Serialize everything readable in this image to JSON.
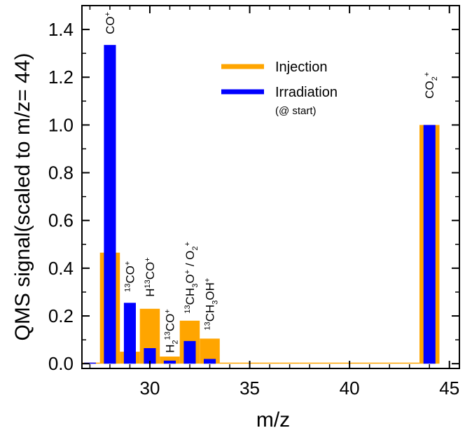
{
  "chart_data": {
    "type": "bar",
    "xlabel": "m/z",
    "ylabel": "QMS signal(scaled to m/z= 44)",
    "xlim": [
      26.6,
      45.5
    ],
    "ylim": [
      -0.02,
      1.5
    ],
    "xticks": [
      {
        "value": 30,
        "label": "30"
      },
      {
        "value": 35,
        "label": "35"
      },
      {
        "value": 40,
        "label": "40"
      },
      {
        "value": 45,
        "label": "45"
      }
    ],
    "yticks": [
      {
        "value": 0.0,
        "label": "0.0"
      },
      {
        "value": 0.2,
        "label": "0.2"
      },
      {
        "value": 0.4,
        "label": "0.4"
      },
      {
        "value": 0.6,
        "label": "0.6"
      },
      {
        "value": 0.8,
        "label": "0.8"
      },
      {
        "value": 1.0,
        "label": "1.0"
      },
      {
        "value": 1.2,
        "label": "1.2"
      },
      {
        "value": 1.4,
        "label": "1.4"
      }
    ],
    "series": [
      {
        "name": "Injection",
        "color": "#FFA500",
        "bar_width": 1.0,
        "points": [
          {
            "x": 27,
            "y": 0.0
          },
          {
            "x": 28,
            "y": 0.465
          },
          {
            "x": 29,
            "y": 0.05
          },
          {
            "x": 30,
            "y": 0.23
          },
          {
            "x": 31,
            "y": 0.03
          },
          {
            "x": 32,
            "y": 0.18
          },
          {
            "x": 33,
            "y": 0.105
          },
          {
            "x": 34,
            "y": 0.003
          },
          {
            "x": 35,
            "y": 0.0
          },
          {
            "x": 36,
            "y": 0.0
          },
          {
            "x": 37,
            "y": 0.0
          },
          {
            "x": 38,
            "y": 0.0
          },
          {
            "x": 39,
            "y": 0.0
          },
          {
            "x": 40,
            "y": 0.0
          },
          {
            "x": 41,
            "y": 0.0
          },
          {
            "x": 42,
            "y": 0.0
          },
          {
            "x": 43,
            "y": 0.0
          },
          {
            "x": 44,
            "y": 1.0
          }
        ]
      },
      {
        "name": "Irradiation",
        "name_note": "(@ start)",
        "color": "#0000FF",
        "bar_width": 0.6,
        "points": [
          {
            "x": 27,
            "y": 0.0
          },
          {
            "x": 28,
            "y": 1.335
          },
          {
            "x": 29,
            "y": 0.255
          },
          {
            "x": 30,
            "y": 0.065
          },
          {
            "x": 31,
            "y": 0.013
          },
          {
            "x": 32,
            "y": 0.095
          },
          {
            "x": 33,
            "y": 0.02
          },
          {
            "x": 44,
            "y": 1.0
          }
        ]
      }
    ],
    "annotations": [
      {
        "x": 28,
        "y": 1.38,
        "segments": [
          {
            "t": "CO"
          },
          {
            "t": "+",
            "s": "sup"
          }
        ]
      },
      {
        "x": 29,
        "y": 0.3,
        "segments": [
          {
            "t": "13",
            "s": "sup"
          },
          {
            "t": "CO"
          },
          {
            "t": "+",
            "s": "sup"
          }
        ]
      },
      {
        "x": 30,
        "y": 0.28,
        "segments": [
          {
            "t": "H"
          },
          {
            "t": "13",
            "s": "sup"
          },
          {
            "t": "CO"
          },
          {
            "t": "+",
            "s": "sup"
          }
        ]
      },
      {
        "x": 31,
        "y": 0.045,
        "segments": [
          {
            "t": "H"
          },
          {
            "t": "2",
            "s": "sub"
          },
          {
            "t": "13",
            "s": "sup"
          },
          {
            "t": "CO"
          },
          {
            "t": "+",
            "s": "sup"
          }
        ]
      },
      {
        "x": 32,
        "y": 0.21,
        "segments": [
          {
            "t": "13",
            "s": "sup"
          },
          {
            "t": "CH"
          },
          {
            "t": "3",
            "s": "sub"
          },
          {
            "t": "O"
          },
          {
            "t": "+",
            "s": "sup"
          },
          {
            "t": " / O"
          },
          {
            "t": "2",
            "s": "sub"
          },
          {
            "t": "+",
            "s": "sup"
          }
        ]
      },
      {
        "x": 33,
        "y": 0.14,
        "segments": [
          {
            "t": "13",
            "s": "sup"
          },
          {
            "t": "CH"
          },
          {
            "t": "3",
            "s": "sub"
          },
          {
            "t": "OH"
          },
          {
            "t": "+",
            "s": "sup"
          }
        ]
      },
      {
        "x": 44,
        "y": 1.11,
        "segments": [
          {
            "t": "CO"
          },
          {
            "t": "2",
            "s": "sub"
          },
          {
            "t": "+",
            "s": "sup"
          }
        ]
      }
    ],
    "legend": {
      "position": "top-center"
    },
    "grid": false
  }
}
